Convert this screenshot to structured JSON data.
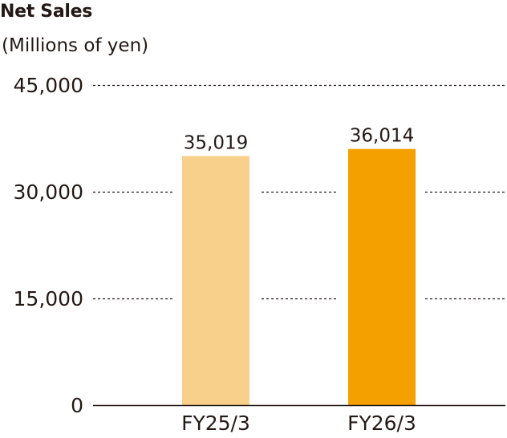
{
  "chart_data": {
    "type": "bar",
    "title": "Net Sales",
    "subtitle": "(Millions of yen)",
    "xlabel": "",
    "ylabel": "",
    "categories": [
      "FY25/3",
      "FY26/3"
    ],
    "values": [
      35019,
      36014
    ],
    "value_labels": [
      "35,019",
      "36,014"
    ],
    "colors": [
      "#F8D08C",
      "#F3A000"
    ],
    "ylim": [
      0,
      45000
    ],
    "yticks": [
      0,
      15000,
      30000,
      45000
    ],
    "ytick_labels": [
      "0",
      "15,000",
      "30,000",
      "45,000"
    ],
    "grid": true,
    "grid_style": "dotted",
    "legend": "none"
  }
}
